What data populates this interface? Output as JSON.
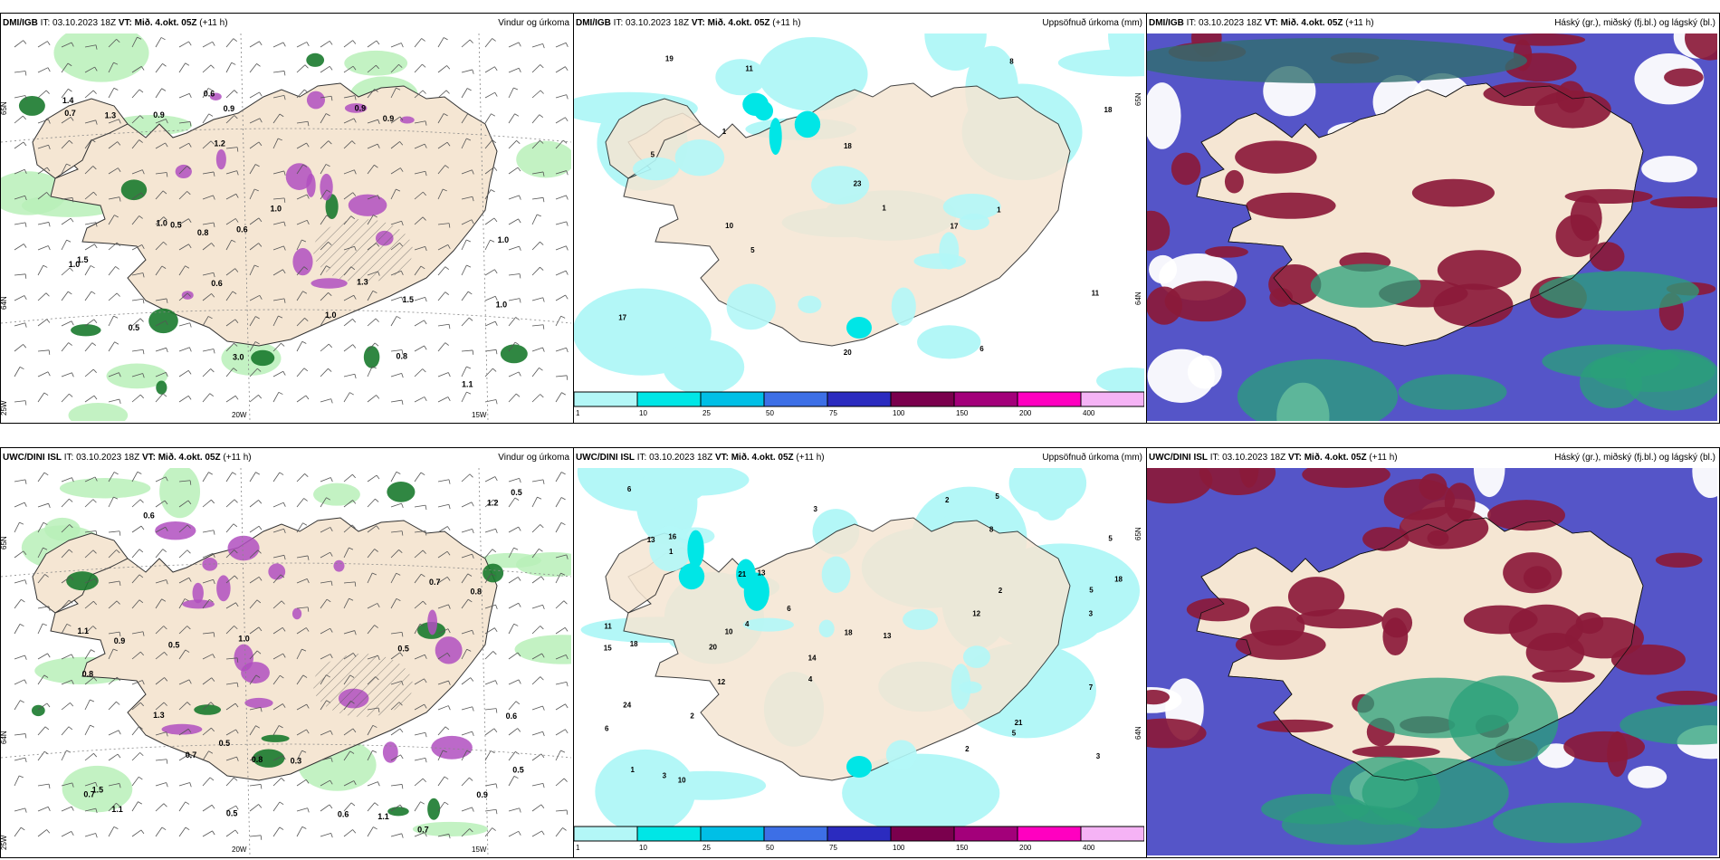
{
  "panels": [
    {
      "source": "DMI/IGB",
      "init": " IT: 03.10.2023 18Z ",
      "vt_label": "VT:",
      "vt_value": " Mið. 4.okt. 05Z",
      "lead": " (+11 h)",
      "title": "Vindur og úrkoma",
      "values": [
        "1.0",
        "0.9",
        "1.2",
        "0.9",
        "1.3",
        "0.5",
        "0.6",
        "0.9",
        "0.7",
        "1.5",
        "0.8",
        "1.0",
        "1.1",
        "0.6",
        "0.9",
        "1.0",
        "1.0",
        "1.4",
        "1.3",
        "0.5",
        "0.8",
        "0.6",
        "1.0",
        "1.0",
        "3.0",
        "1.5"
      ],
      "lat_labels": [
        "65N",
        "64N"
      ],
      "lon_labels": [
        "20W",
        "15W",
        "25W"
      ]
    },
    {
      "source": "DMI/IGB",
      "init": " IT: 03.10.2023 18Z ",
      "vt_label": "VT:",
      "vt_value": " Mið. 4.okt. 05Z",
      "lead": " (+11 h)",
      "title": "Uppsöfnuð úrkoma (mm)",
      "values": [
        "23",
        "20",
        "6",
        "17",
        "18",
        "19",
        "8",
        "18",
        "11",
        "5",
        "5",
        "1",
        "11",
        "1",
        "10",
        "17",
        "1"
      ],
      "lat_labels": [
        "65N",
        "64N"
      ]
    },
    {
      "source": "DMI/IGB",
      "init": " IT: 03.10.2023 18Z ",
      "vt_label": "VT:",
      "vt_value": " Mið. 4.okt. 05Z",
      "lead": " (+11 h)",
      "title": "Háský (gr.), miðský (fj.bl.) og lágský (bl.)"
    },
    {
      "source": "UWC/DINI ISL",
      "init": " IT: 03.10.2023 18Z ",
      "vt_label": "VT:",
      "vt_value": " Mið. 4.okt. 05Z",
      "lead": " (+11 h)",
      "title": "Vindur og úrkoma",
      "values": [
        "1.0",
        "1.2",
        "0.5",
        "1.1",
        "0.7",
        "0.9",
        "0.5",
        "0.6",
        "1.5",
        "0.8",
        "0.7",
        "0.5",
        "0.8",
        "1.1",
        "0.5",
        "0.7",
        "1.1",
        "0.9",
        "0.6",
        "1.3",
        "0.5",
        "0.8",
        "0.5",
        "0.6",
        "0.7",
        "0.3"
      ],
      "lat_labels": [
        "65N",
        "64N"
      ],
      "lon_labels": [
        "20W",
        "15W",
        "25W"
      ]
    },
    {
      "source": "UWC/DINI ISL",
      "init": " IT: 03.10.2023 18Z ",
      "vt_label": "VT:",
      "vt_value": " Mið. 4.okt. 05Z",
      "lead": " (+11 h)",
      "title": "Uppsöfnuð úrkoma (mm)",
      "values": [
        "5",
        "2",
        "2",
        "5",
        "14",
        "10",
        "18",
        "21",
        "18",
        "15",
        "13",
        "6",
        "3",
        "10",
        "13",
        "20",
        "7",
        "6",
        "16",
        "8",
        "12",
        "24",
        "18",
        "5",
        "4",
        "11",
        "13",
        "2",
        "3",
        "6",
        "1",
        "2",
        "12",
        "21",
        "5",
        "3",
        "1",
        "4",
        "3"
      ],
      "lat_labels": [
        "65N",
        "64N"
      ]
    },
    {
      "source": "UWC/DINI ISL",
      "init": " IT: 03.10.2023 18Z ",
      "vt_label": "VT:",
      "vt_value": " Mið. 4.okt. 05Z",
      "lead": " (+11 h)",
      "title": "Háský (gr.), miðský (fj.bl.) og lágský (bl.)"
    }
  ],
  "colorbar": {
    "labels": [
      "1",
      "10",
      "25",
      "50",
      "75",
      "100",
      "150",
      "200",
      "400"
    ],
    "colors": [
      "#b3f7f7",
      "#00e6e6",
      "#00bfe6",
      "#3d6fe6",
      "#2b2bbf",
      "#7a004d",
      "#a3007a",
      "#ff00c0",
      "#f5b3f5"
    ]
  },
  "colors": {
    "land": "#f5e6d3",
    "sea_white": "#ffffff",
    "precip_light": "#b3f7f7",
    "wind_green_light": "#b8f0b8",
    "wind_green_dark": "#1a7a2e",
    "precip_purple": "#b04fc0",
    "cloud_red": "#8b1a3a",
    "cloud_blue": "#5555c8",
    "cloud_green": "#2aa07a"
  }
}
